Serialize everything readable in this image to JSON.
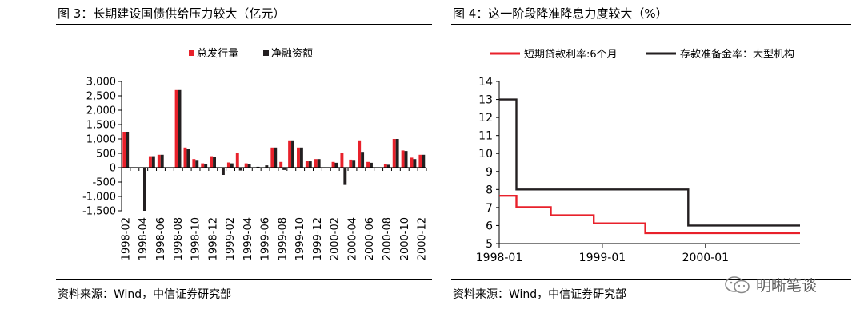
{
  "left": {
    "title": "图 3：长期建设国债供给压力较大（亿元）",
    "source": "资料来源：Wind，中信证券研究部"
  },
  "right": {
    "title": "图 4：这一阶段降准降息力度较大（%）",
    "source": "资料来源：Wind，中信证券研究部"
  },
  "watermark": "明晰笔谈",
  "colors": {
    "red": "#E8212B",
    "dark": "#231F20"
  },
  "chart_data": [
    {
      "type": "bar",
      "title": "",
      "legend_position": "top",
      "categories": [
        "1998-02",
        "1998-03",
        "1998-04",
        "1998-05",
        "1998-06",
        "1998-07",
        "1998-08",
        "1998-09",
        "1998-10",
        "1998-11",
        "1998-12",
        "1999-01",
        "1999-02",
        "1999-03",
        "1999-04",
        "1999-05",
        "1999-06",
        "1999-07",
        "1999-08",
        "1999-09",
        "1999-10",
        "1999-11",
        "1999-12",
        "2000-01",
        "2000-02",
        "2000-03",
        "2000-04",
        "2000-05",
        "2000-06",
        "2000-07",
        "2000-08",
        "2000-09",
        "2000-10",
        "2000-11",
        "2000-12"
      ],
      "tick_labels": [
        "1998-02",
        "1998-04",
        "1998-06",
        "1998-08",
        "1998-10",
        "1998-12",
        "1999-02",
        "1999-04",
        "1999-06",
        "1999-08",
        "1999-10",
        "1999-12",
        "2000-02",
        "2000-04",
        "2000-06",
        "2000-08",
        "2000-10",
        "2000-12"
      ],
      "series": [
        {
          "name": "总发行量",
          "color": "#E8212B",
          "values": [
            1250,
            0,
            0,
            400,
            450,
            0,
            2700,
            700,
            300,
            150,
            400,
            0,
            180,
            500,
            150,
            0,
            0,
            700,
            200,
            950,
            700,
            250,
            300,
            0,
            200,
            500,
            280,
            950,
            200,
            0,
            130,
            1000,
            600,
            350,
            450
          ]
        },
        {
          "name": "净融资额",
          "color": "#231F20",
          "values": [
            1250,
            0,
            -1500,
            400,
            450,
            0,
            2700,
            650,
            270,
            120,
            380,
            -250,
            150,
            -100,
            120,
            30,
            80,
            700,
            -80,
            950,
            700,
            220,
            300,
            0,
            170,
            -600,
            270,
            550,
            170,
            0,
            100,
            1000,
            580,
            300,
            450
          ]
        }
      ],
      "ylim": [
        -1500,
        3000
      ],
      "yticks": [
        "3,000",
        "2,500",
        "2,000",
        "1,500",
        "1,000",
        "500",
        "0",
        "-500",
        "-1,000",
        "-1,500"
      ],
      "ytick_values": [
        3000,
        2500,
        2000,
        1500,
        1000,
        500,
        0,
        -500,
        -1000,
        -1500
      ]
    },
    {
      "type": "line",
      "title": "",
      "legend_position": "top",
      "xlim": [
        "1998-01",
        "2000-12"
      ],
      "xticks": [
        "1998-01",
        "1999-01",
        "2000-01"
      ],
      "ylim": [
        5,
        14
      ],
      "yticks": [
        5,
        6,
        7,
        8,
        9,
        10,
        11,
        12,
        13,
        14
      ],
      "series": [
        {
          "name": "短期贷款利率:6个月",
          "color": "#E8212B",
          "step": true,
          "points": [
            [
              "1998-01",
              7.65
            ],
            [
              "1998-03",
              7.65
            ],
            [
              "1998-03",
              7.02
            ],
            [
              "1998-07",
              7.02
            ],
            [
              "1998-07",
              6.57
            ],
            [
              "1998-12",
              6.57
            ],
            [
              "1998-12",
              6.12
            ],
            [
              "1999-06",
              6.12
            ],
            [
              "1999-06",
              5.58
            ],
            [
              "2000-12",
              5.58
            ]
          ]
        },
        {
          "name": "存款准备金率：大型机构",
          "color": "#231F20",
          "step": true,
          "points": [
            [
              "1998-01",
              13
            ],
            [
              "1998-03",
              13
            ],
            [
              "1998-03",
              8
            ],
            [
              "1999-11",
              8
            ],
            [
              "1999-11",
              6
            ],
            [
              "2000-12",
              6
            ]
          ]
        }
      ]
    }
  ]
}
